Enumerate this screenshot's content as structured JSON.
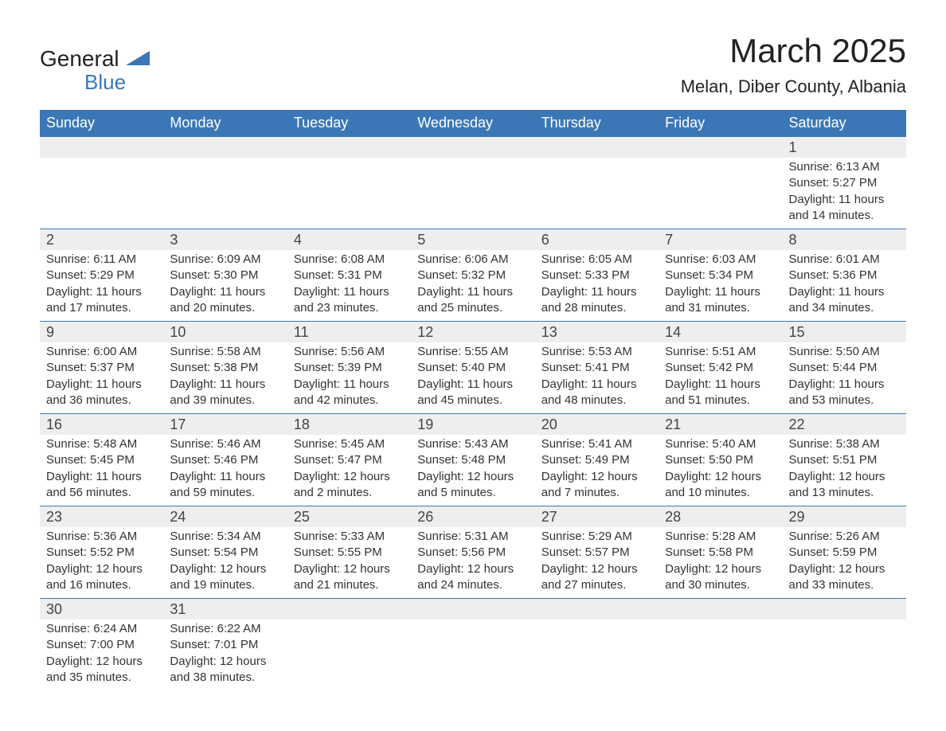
{
  "brand": {
    "name_part1": "General",
    "name_part2": "Blue",
    "accent_color": "#3b77b7"
  },
  "header": {
    "month_title": "March 2025",
    "location": "Melan, Diber County, Albania"
  },
  "calendar": {
    "header_bg": "#3b77b7",
    "header_fg": "#ffffff",
    "daynum_bg": "#eeeeee",
    "row_border_color": "#3b77b7",
    "text_color": "#333333",
    "columns": [
      "Sunday",
      "Monday",
      "Tuesday",
      "Wednesday",
      "Thursday",
      "Friday",
      "Saturday"
    ],
    "weeks": [
      [
        null,
        null,
        null,
        null,
        null,
        null,
        {
          "day": "1",
          "sunrise": "Sunrise: 6:13 AM",
          "sunset": "Sunset: 5:27 PM",
          "dl1": "Daylight: 11 hours",
          "dl2": "and 14 minutes."
        }
      ],
      [
        {
          "day": "2",
          "sunrise": "Sunrise: 6:11 AM",
          "sunset": "Sunset: 5:29 PM",
          "dl1": "Daylight: 11 hours",
          "dl2": "and 17 minutes."
        },
        {
          "day": "3",
          "sunrise": "Sunrise: 6:09 AM",
          "sunset": "Sunset: 5:30 PM",
          "dl1": "Daylight: 11 hours",
          "dl2": "and 20 minutes."
        },
        {
          "day": "4",
          "sunrise": "Sunrise: 6:08 AM",
          "sunset": "Sunset: 5:31 PM",
          "dl1": "Daylight: 11 hours",
          "dl2": "and 23 minutes."
        },
        {
          "day": "5",
          "sunrise": "Sunrise: 6:06 AM",
          "sunset": "Sunset: 5:32 PM",
          "dl1": "Daylight: 11 hours",
          "dl2": "and 25 minutes."
        },
        {
          "day": "6",
          "sunrise": "Sunrise: 6:05 AM",
          "sunset": "Sunset: 5:33 PM",
          "dl1": "Daylight: 11 hours",
          "dl2": "and 28 minutes."
        },
        {
          "day": "7",
          "sunrise": "Sunrise: 6:03 AM",
          "sunset": "Sunset: 5:34 PM",
          "dl1": "Daylight: 11 hours",
          "dl2": "and 31 minutes."
        },
        {
          "day": "8",
          "sunrise": "Sunrise: 6:01 AM",
          "sunset": "Sunset: 5:36 PM",
          "dl1": "Daylight: 11 hours",
          "dl2": "and 34 minutes."
        }
      ],
      [
        {
          "day": "9",
          "sunrise": "Sunrise: 6:00 AM",
          "sunset": "Sunset: 5:37 PM",
          "dl1": "Daylight: 11 hours",
          "dl2": "and 36 minutes."
        },
        {
          "day": "10",
          "sunrise": "Sunrise: 5:58 AM",
          "sunset": "Sunset: 5:38 PM",
          "dl1": "Daylight: 11 hours",
          "dl2": "and 39 minutes."
        },
        {
          "day": "11",
          "sunrise": "Sunrise: 5:56 AM",
          "sunset": "Sunset: 5:39 PM",
          "dl1": "Daylight: 11 hours",
          "dl2": "and 42 minutes."
        },
        {
          "day": "12",
          "sunrise": "Sunrise: 5:55 AM",
          "sunset": "Sunset: 5:40 PM",
          "dl1": "Daylight: 11 hours",
          "dl2": "and 45 minutes."
        },
        {
          "day": "13",
          "sunrise": "Sunrise: 5:53 AM",
          "sunset": "Sunset: 5:41 PM",
          "dl1": "Daylight: 11 hours",
          "dl2": "and 48 minutes."
        },
        {
          "day": "14",
          "sunrise": "Sunrise: 5:51 AM",
          "sunset": "Sunset: 5:42 PM",
          "dl1": "Daylight: 11 hours",
          "dl2": "and 51 minutes."
        },
        {
          "day": "15",
          "sunrise": "Sunrise: 5:50 AM",
          "sunset": "Sunset: 5:44 PM",
          "dl1": "Daylight: 11 hours",
          "dl2": "and 53 minutes."
        }
      ],
      [
        {
          "day": "16",
          "sunrise": "Sunrise: 5:48 AM",
          "sunset": "Sunset: 5:45 PM",
          "dl1": "Daylight: 11 hours",
          "dl2": "and 56 minutes."
        },
        {
          "day": "17",
          "sunrise": "Sunrise: 5:46 AM",
          "sunset": "Sunset: 5:46 PM",
          "dl1": "Daylight: 11 hours",
          "dl2": "and 59 minutes."
        },
        {
          "day": "18",
          "sunrise": "Sunrise: 5:45 AM",
          "sunset": "Sunset: 5:47 PM",
          "dl1": "Daylight: 12 hours",
          "dl2": "and 2 minutes."
        },
        {
          "day": "19",
          "sunrise": "Sunrise: 5:43 AM",
          "sunset": "Sunset: 5:48 PM",
          "dl1": "Daylight: 12 hours",
          "dl2": "and 5 minutes."
        },
        {
          "day": "20",
          "sunrise": "Sunrise: 5:41 AM",
          "sunset": "Sunset: 5:49 PM",
          "dl1": "Daylight: 12 hours",
          "dl2": "and 7 minutes."
        },
        {
          "day": "21",
          "sunrise": "Sunrise: 5:40 AM",
          "sunset": "Sunset: 5:50 PM",
          "dl1": "Daylight: 12 hours",
          "dl2": "and 10 minutes."
        },
        {
          "day": "22",
          "sunrise": "Sunrise: 5:38 AM",
          "sunset": "Sunset: 5:51 PM",
          "dl1": "Daylight: 12 hours",
          "dl2": "and 13 minutes."
        }
      ],
      [
        {
          "day": "23",
          "sunrise": "Sunrise: 5:36 AM",
          "sunset": "Sunset: 5:52 PM",
          "dl1": "Daylight: 12 hours",
          "dl2": "and 16 minutes."
        },
        {
          "day": "24",
          "sunrise": "Sunrise: 5:34 AM",
          "sunset": "Sunset: 5:54 PM",
          "dl1": "Daylight: 12 hours",
          "dl2": "and 19 minutes."
        },
        {
          "day": "25",
          "sunrise": "Sunrise: 5:33 AM",
          "sunset": "Sunset: 5:55 PM",
          "dl1": "Daylight: 12 hours",
          "dl2": "and 21 minutes."
        },
        {
          "day": "26",
          "sunrise": "Sunrise: 5:31 AM",
          "sunset": "Sunset: 5:56 PM",
          "dl1": "Daylight: 12 hours",
          "dl2": "and 24 minutes."
        },
        {
          "day": "27",
          "sunrise": "Sunrise: 5:29 AM",
          "sunset": "Sunset: 5:57 PM",
          "dl1": "Daylight: 12 hours",
          "dl2": "and 27 minutes."
        },
        {
          "day": "28",
          "sunrise": "Sunrise: 5:28 AM",
          "sunset": "Sunset: 5:58 PM",
          "dl1": "Daylight: 12 hours",
          "dl2": "and 30 minutes."
        },
        {
          "day": "29",
          "sunrise": "Sunrise: 5:26 AM",
          "sunset": "Sunset: 5:59 PM",
          "dl1": "Daylight: 12 hours",
          "dl2": "and 33 minutes."
        }
      ],
      [
        {
          "day": "30",
          "sunrise": "Sunrise: 6:24 AM",
          "sunset": "Sunset: 7:00 PM",
          "dl1": "Daylight: 12 hours",
          "dl2": "and 35 minutes."
        },
        {
          "day": "31",
          "sunrise": "Sunrise: 6:22 AM",
          "sunset": "Sunset: 7:01 PM",
          "dl1": "Daylight: 12 hours",
          "dl2": "and 38 minutes."
        },
        null,
        null,
        null,
        null,
        null
      ]
    ]
  }
}
